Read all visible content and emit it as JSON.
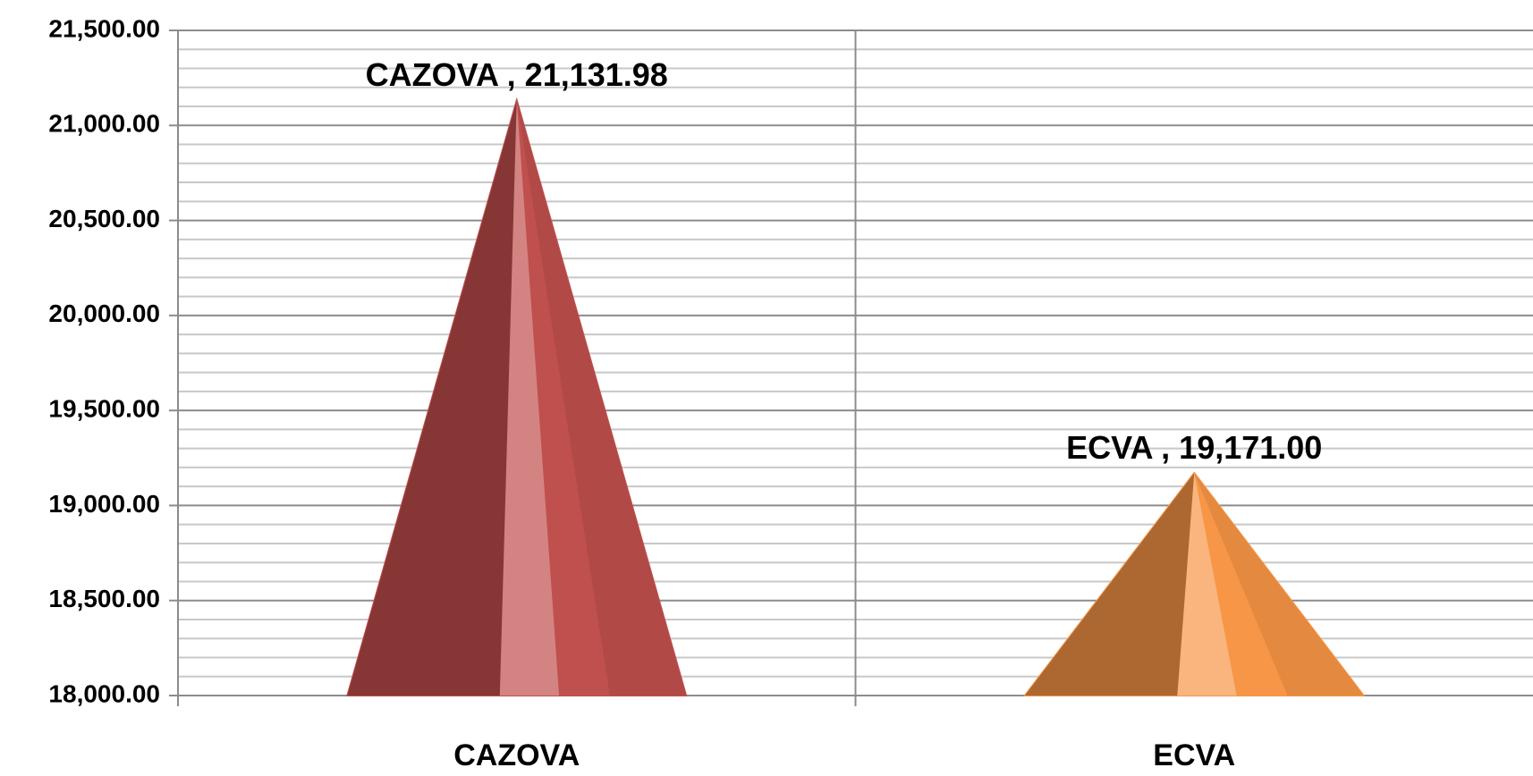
{
  "chart_data": {
    "type": "cone",
    "categories": [
      "CAZOVA",
      "ECVA"
    ],
    "series": [
      {
        "values": [
          21131.98,
          19171.0
        ],
        "value_labels": [
          "CAZOVA , 21,131.98",
          "ECVA , 19,171.00"
        ],
        "colors": [
          "#c0504d",
          "#f79646"
        ]
      }
    ],
    "ylim": [
      18000,
      21500
    ],
    "yticks": [
      {
        "value": 18000,
        "label": "18,000.00"
      },
      {
        "value": 18500,
        "label": "18,500.00"
      },
      {
        "value": 19000,
        "label": "19,000.00"
      },
      {
        "value": 19500,
        "label": "19,500.00"
      },
      {
        "value": 20000,
        "label": "20,000.00"
      },
      {
        "value": 20500,
        "label": "20,500.00"
      },
      {
        "value": 21000,
        "label": "21,000.00"
      },
      {
        "value": 21500,
        "label": "21,500.00"
      }
    ],
    "minor_yticks": [
      18100,
      18200,
      18300,
      18400,
      18600,
      18700,
      18800,
      18900,
      19100,
      19200,
      19300,
      19400,
      19600,
      19700,
      19800,
      19900,
      20100,
      20200,
      20300,
      20400,
      20600,
      20700,
      20800,
      20900,
      21100,
      21200,
      21300,
      21400
    ],
    "grid": true
  }
}
